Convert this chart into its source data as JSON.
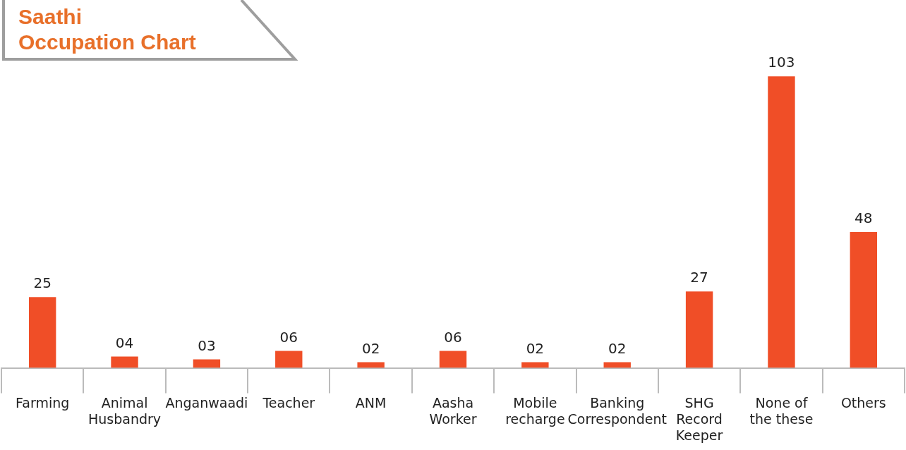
{
  "chart_data": {
    "type": "bar",
    "title": "Saathi\nOccupation Chart",
    "categories": [
      "Farming",
      "Animal\nHusbandry",
      "Anganwaadi",
      "Teacher",
      "ANM",
      "Aasha\nWorker",
      "Mobile\nrecharge",
      "Banking\nCorrespondent",
      "SHG\nRecord\nKeeper",
      "None of\nthe these",
      "Others"
    ],
    "values": [
      25,
      4,
      3,
      6,
      2,
      6,
      2,
      2,
      27,
      103,
      48
    ],
    "value_labels": [
      "25",
      "04",
      "03",
      "06",
      "02",
      "06",
      "02",
      "02",
      "27",
      "103",
      "48"
    ],
    "color": "#f04e27",
    "grid": false,
    "legend": false
  }
}
